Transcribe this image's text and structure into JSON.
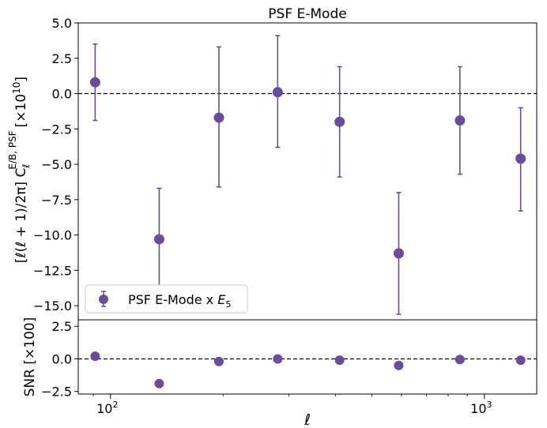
{
  "chart_data": [
    {
      "type": "scatter",
      "title": "PSF E-Mode",
      "xlabel": "",
      "ylabel_main": "[ℓ(ℓ + 1)/2π] C",
      "ylabel_sub": "ℓ",
      "ylabel_sup": "E/B, PSF",
      "ylabel_unit": "[×10",
      "ylabel_unit_exp": "10",
      "ylabel_unit_close": "]",
      "x_scale": "log",
      "xlim": [
        82,
        1380
      ],
      "ylim": [
        -16.0,
        5.0
      ],
      "yticks": [
        5.0,
        2.5,
        0.0,
        -2.5,
        -5.0,
        -7.5,
        -10.0,
        -12.5,
        -15.0
      ],
      "ytick_labels": [
        "5.0",
        "2.5",
        "0.0",
        "−2.5",
        "−5.0",
        "−7.5",
        "−10.0",
        "−12.5",
        "−15.0"
      ],
      "reference_line": 0.0,
      "grid": false,
      "legend": {
        "placement": "lower-left",
        "label_prefix": "PSF E-Mode x ",
        "label_var": "E",
        "label_sub": "5"
      },
      "color": "#6a4c9c",
      "series": [
        {
          "name": "PSF E-Mode x E5",
          "x": [
            91,
            135,
            195,
            280,
            410,
            590,
            860,
            1250
          ],
          "y": [
            0.8,
            -10.3,
            -1.7,
            0.1,
            -2.0,
            -11.3,
            -1.9,
            -4.6
          ],
          "err_lo": [
            -1.9,
            -13.8,
            -6.6,
            -3.8,
            -5.9,
            -15.6,
            -5.7,
            -8.3
          ],
          "err_hi": [
            3.5,
            -6.7,
            3.3,
            4.1,
            1.9,
            -7.0,
            1.9,
            -1.0
          ]
        }
      ]
    },
    {
      "type": "scatter",
      "title": "",
      "xlabel": "ℓ",
      "ylabel": "SNR [×100]",
      "x_scale": "log",
      "xlim": [
        82,
        1380
      ],
      "ylim": [
        -2.7,
        3.0
      ],
      "xticks": [
        100,
        1000
      ],
      "xtick_base": "10",
      "xtick_exps": [
        "2",
        "3"
      ],
      "yticks": [
        2.5,
        0.0,
        -2.5
      ],
      "ytick_labels": [
        "2.5",
        "0.0",
        "−2.5"
      ],
      "reference_line": 0.0,
      "grid": false,
      "color": "#6a4c9c",
      "series": [
        {
          "x": [
            91,
            135,
            195,
            280,
            410,
            590,
            860,
            1250
          ],
          "y": [
            0.2,
            -1.9,
            -0.2,
            0.0,
            -0.1,
            -0.5,
            -0.05,
            -0.1
          ]
        }
      ]
    }
  ]
}
